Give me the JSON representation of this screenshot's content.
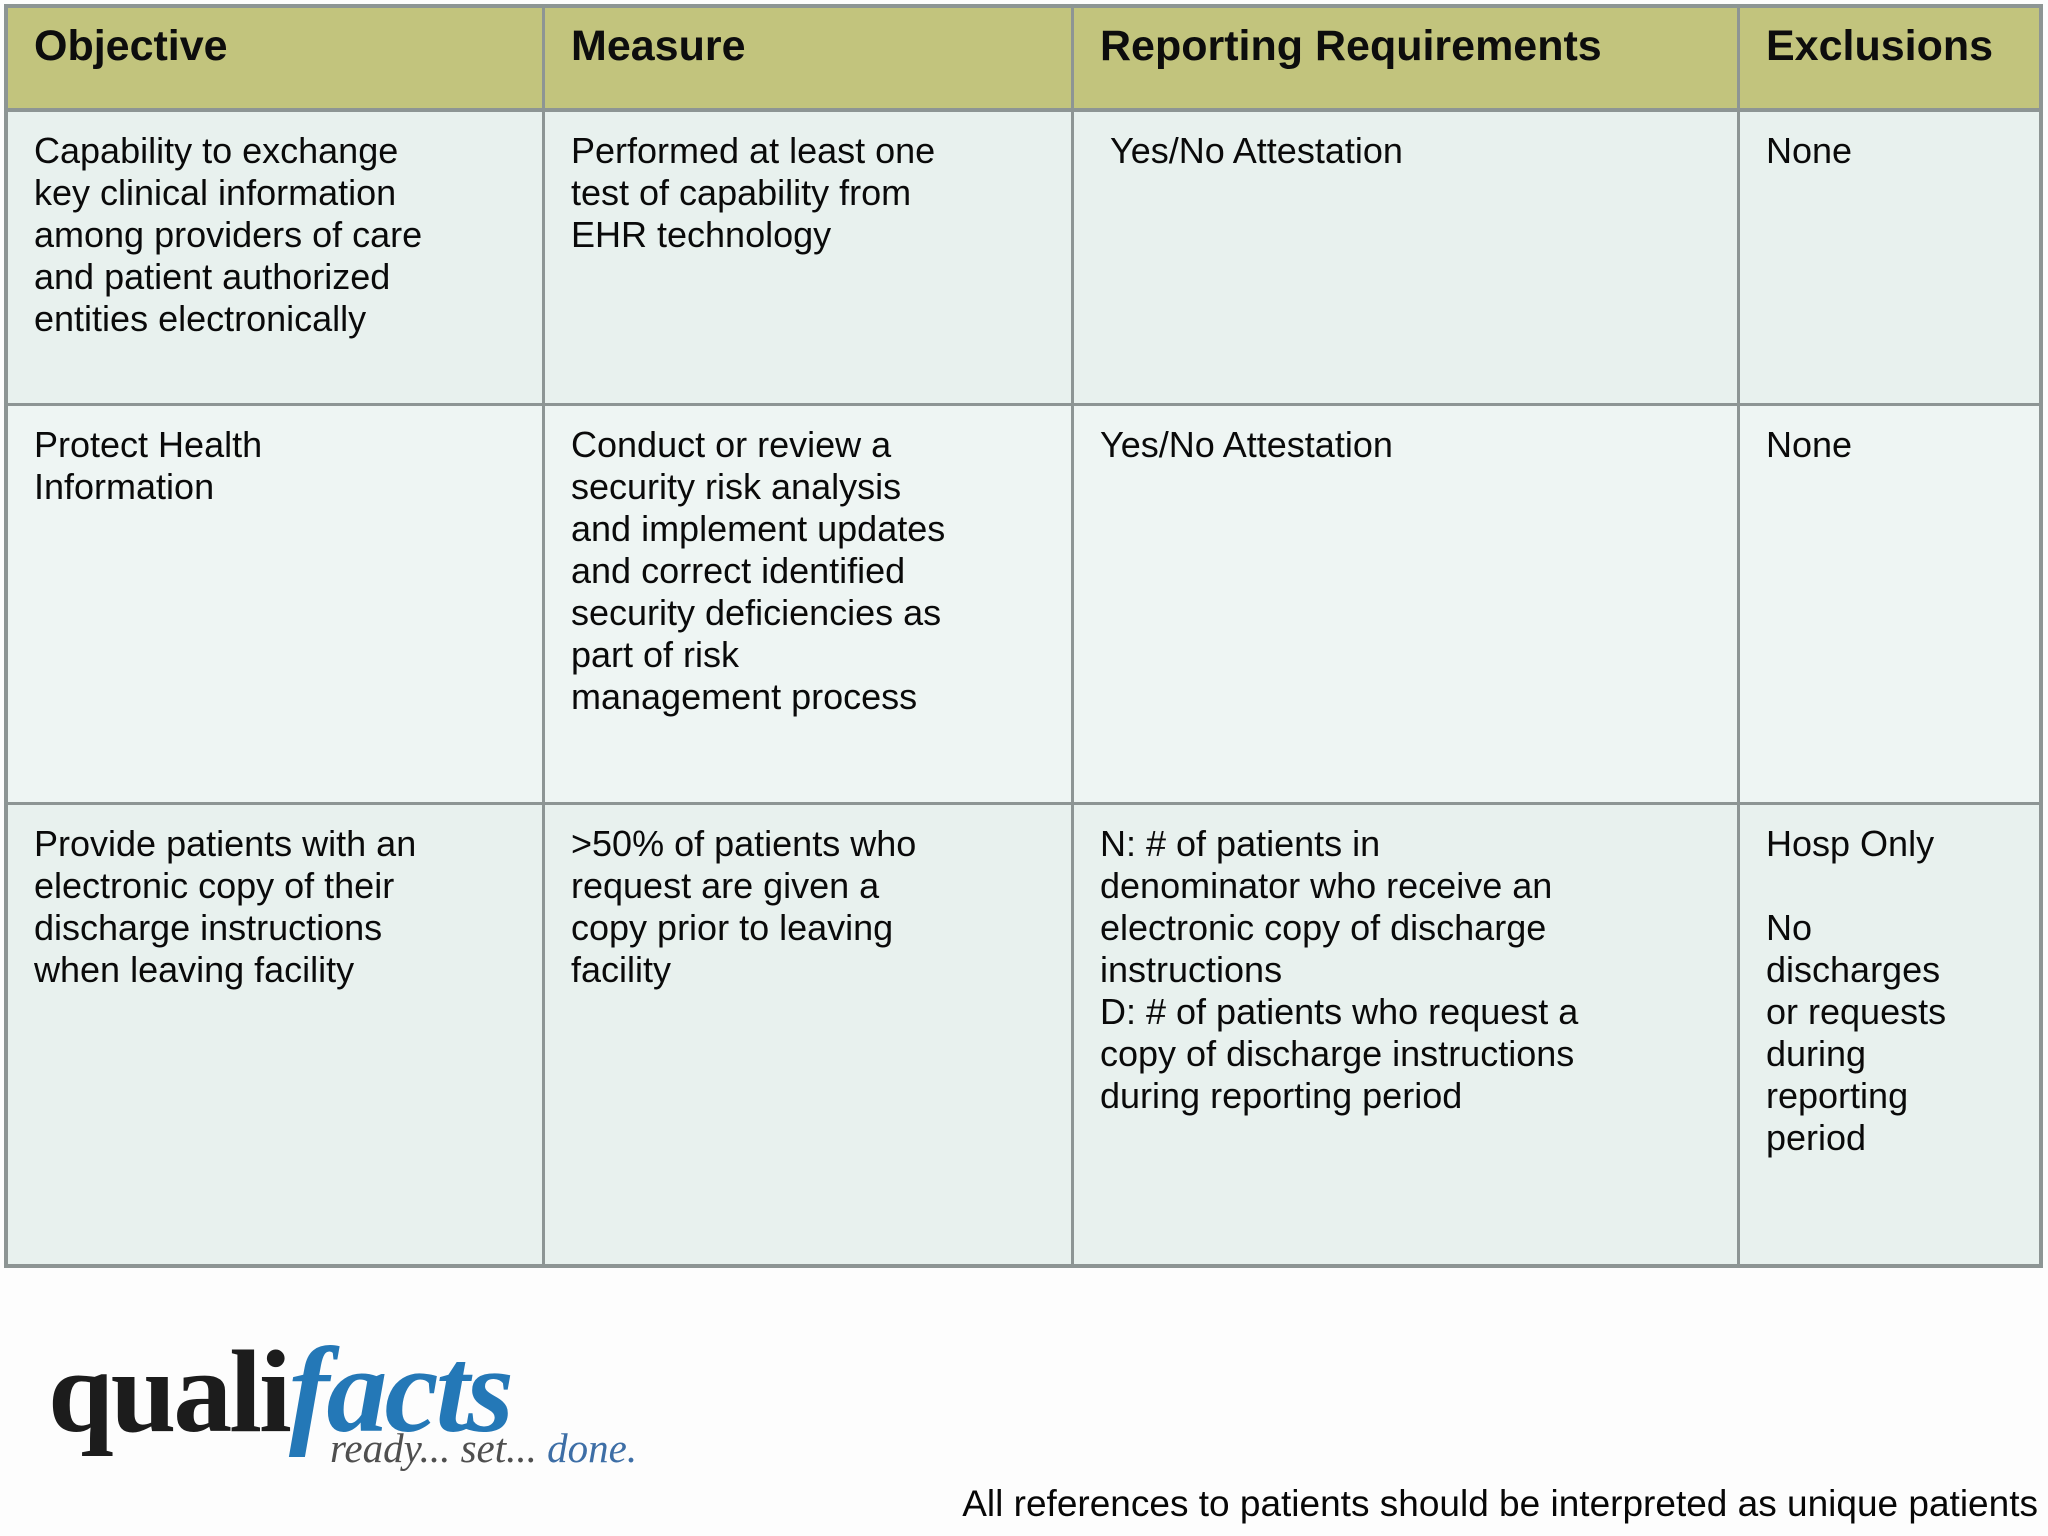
{
  "table": {
    "headers": [
      "Objective",
      "Measure",
      "Reporting Requirements",
      "Exclusions"
    ],
    "rows": [
      {
        "objective": "Capability to exchange\nkey clinical information\namong providers of care\nand patient authorized\nentities electronically",
        "measure": "Performed at least one\ntest of capability from\nEHR technology",
        "reporting": " Yes/No Attestation",
        "exclusions": "None"
      },
      {
        "objective": "Protect Health\nInformation",
        "measure": "Conduct or review a\nsecurity risk analysis\nand implement updates\nand correct identified\nsecurity deficiencies as\npart of risk\nmanagement process",
        "reporting": "Yes/No Attestation",
        "exclusions": "None"
      },
      {
        "objective": "Provide patients with an\nelectronic copy of their\ndischarge instructions\nwhen leaving facility",
        "measure": ">50% of patients who\nrequest are given a\ncopy prior to leaving\nfacility",
        "reporting": "N: # of patients in\ndenominator who receive an\nelectronic copy of discharge\ninstructions\nD: # of patients who request a\ncopy of discharge instructions\nduring reporting period",
        "exclusions": "Hosp Only\n\nNo\ndischarges\nor requests\nduring\nreporting\nperiod"
      }
    ]
  },
  "logo": {
    "word_black": "quali",
    "word_blue": "facts",
    "tagline_gray": "ready... set...",
    "tagline_blue": " done."
  },
  "footer": {
    "note": "All references to patients should be interpreted as unique patients"
  },
  "colors": {
    "header_background": "#c2c47d",
    "table_border": "#8d9594",
    "row_background_a": "#e8f1ee",
    "row_background_b": "#eef5f3",
    "logo_black": "#1c1c1c",
    "logo_blue": "#2478b7",
    "tagline_gray": "#4f4f4f",
    "tagline_blue": "#3d6ea6"
  }
}
